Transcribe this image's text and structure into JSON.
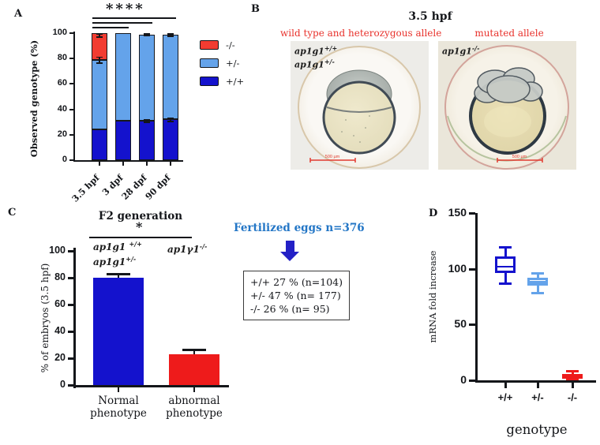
{
  "panel_a": {
    "label": "A"
  },
  "panel_b": {
    "label": "B",
    "title": "3.5 hpf",
    "header_color": "#e8312b",
    "left": {
      "header": "wild type and heterozygous allele",
      "lines": [
        {
          "gene": "ap1g1",
          "sup": "+/+"
        },
        {
          "gene": "ap1g1",
          "sup": "+/-"
        }
      ],
      "scale_label": "500 µm"
    },
    "right": {
      "header": "mutated allele",
      "lines": [
        {
          "gene": "ap1g1",
          "sup": "-/-"
        }
      ],
      "scale_label": "500 µm"
    }
  },
  "panel_c": {
    "label": "C",
    "annotations": {
      "bar1_line1": {
        "gene": "ap1g1",
        "sup": "+/+"
      },
      "bar1_line2": {
        "gene": "ap1g1",
        "sup": "+/-"
      },
      "bar2": {
        "gene": "ap1γ1",
        "sup": "-/-"
      }
    }
  },
  "panel_d": {
    "label": "D"
  },
  "middle": {
    "title": "Fertilized eggs n=376",
    "title_color": "#2376c6",
    "arrow_color": "#2320c6",
    "stats": [
      "+/+ 27 %  (n=104)",
      "+/- 47  %  (n= 177)",
      "-/- 26  %  (n= 95)"
    ]
  },
  "chart_data": [
    {
      "id": "A",
      "type": "bar",
      "stacked": true,
      "title": "",
      "ylabel": "Observed genotype (%)",
      "xlabel": "",
      "ylim": [
        0,
        100
      ],
      "yticks": [
        0,
        20,
        40,
        60,
        80,
        100
      ],
      "grid": false,
      "legend_position": "right",
      "categories": [
        "3.5 hpf",
        "3 dpf",
        "28 dpf",
        "90 dpf"
      ],
      "series": [
        {
          "name": "+/+",
          "color": "#1412cd",
          "values": [
            24,
            31,
            31,
            32
          ]
        },
        {
          "name": "+/-",
          "color": "#64a3ea",
          "values": [
            55,
            69,
            68,
            67
          ]
        },
        {
          "name": "-/-",
          "color": "#f23c31",
          "values": [
            21,
            0,
            0,
            0
          ]
        }
      ],
      "error_bars": [
        {
          "category": 0,
          "value": 79,
          "err": 2.5
        },
        {
          "category": 0,
          "value": 100,
          "err": 3
        },
        {
          "category": 2,
          "value": 31,
          "err": 1.2
        },
        {
          "category": 2,
          "value": 99,
          "err": 1.2
        },
        {
          "category": 3,
          "value": 32,
          "err": 1.5
        },
        {
          "category": 3,
          "value": 99,
          "err": 1.5
        }
      ],
      "significance": {
        "label": "****",
        "comparisons": [
          [
            0,
            1
          ],
          [
            0,
            2
          ],
          [
            0,
            3
          ]
        ]
      },
      "legend": [
        {
          "label": "-/-",
          "color": "#f23c31"
        },
        {
          "label": "+/-",
          "color": "#64a3ea"
        },
        {
          "label": "+/+",
          "color": "#1412cd"
        }
      ]
    },
    {
      "id": "C",
      "type": "bar",
      "stacked": false,
      "title": "F2 generation",
      "ylabel": "% of embryos (3.5 hpf)",
      "xlabel": "",
      "ylim": [
        0,
        100
      ],
      "yticks": [
        0,
        20,
        40,
        60,
        80,
        100
      ],
      "grid": false,
      "categories": [
        "Normal\nphenotype",
        "abnormal\nphenotype"
      ],
      "values": [
        80,
        23
      ],
      "errors": [
        2.5,
        3
      ],
      "colors": [
        "#1412cd",
        "#ee1b1b"
      ],
      "significance": {
        "label": "*",
        "comparisons": [
          [
            0,
            1
          ]
        ]
      }
    },
    {
      "id": "D",
      "type": "box",
      "title": "",
      "ylabel": "mRNA fold increase",
      "xlabel": "genotype",
      "ylim": [
        0,
        150
      ],
      "yticks": [
        0,
        50,
        100,
        150
      ],
      "grid": false,
      "categories": [
        "+/+",
        "+/-",
        "-/-"
      ],
      "boxes": [
        {
          "min": 87,
          "q1": 96,
          "median": 102,
          "q3": 111,
          "max": 119,
          "color": "#1412cd",
          "fill": "#ffffff"
        },
        {
          "min": 78,
          "q1": 85,
          "median": 88,
          "q3": 92,
          "max": 96,
          "color": "#64a3ea",
          "fill": "#ffffff"
        },
        {
          "min": 1,
          "q1": 2,
          "median": 4,
          "q3": 6,
          "max": 8,
          "color": "#ee1b1b",
          "fill": "#ee1b1b"
        }
      ]
    }
  ]
}
